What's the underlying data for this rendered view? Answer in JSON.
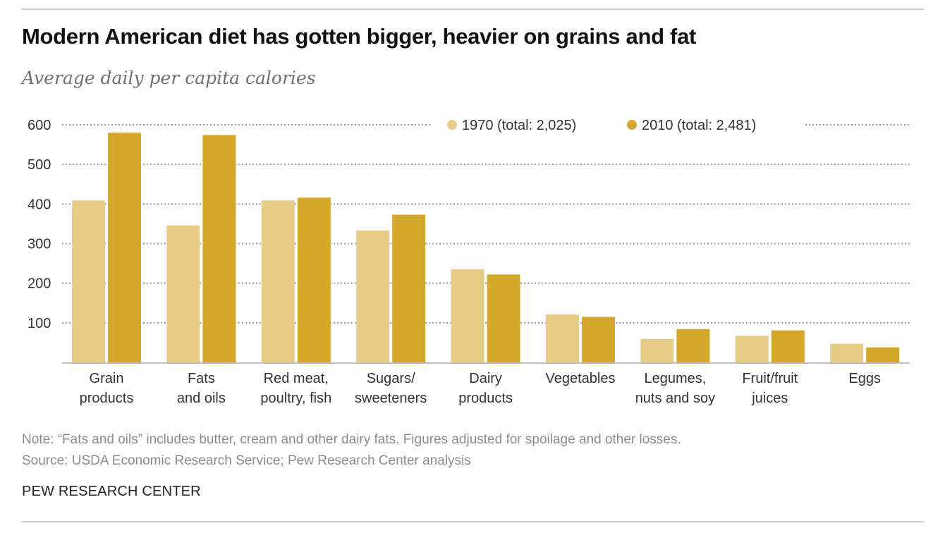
{
  "header": {
    "title": "Modern American diet has gotten bigger, heavier on grains and fat",
    "subtitle": "Average daily per capita calories"
  },
  "footer": {
    "note": "Note: “Fats and oils” includes butter, cream and other dairy fats. Figures adjusted for spoilage and other losses.",
    "source": "Source: USDA Economic Research Service; Pew Research Center analysis",
    "brand": "PEW RESEARCH CENTER"
  },
  "colors": {
    "series_1970": "#e6cc86",
    "series_2010": "#d4a82d",
    "grid": "#9a9a9a",
    "axis": "#bdbdbd",
    "text": "#333333"
  },
  "chart_data": {
    "type": "bar",
    "categories": [
      [
        "Grain",
        "products"
      ],
      [
        "Fats",
        "and oils"
      ],
      [
        "Red meat,",
        "poultry, fish"
      ],
      [
        "Sugars/",
        "sweeteners"
      ],
      [
        "Dairy",
        "products"
      ],
      [
        "Vegetables"
      ],
      [
        "Legumes,",
        "nuts and soy"
      ],
      [
        "Fruit/fruit",
        "juices"
      ],
      [
        "Eggs"
      ]
    ],
    "series": [
      {
        "name": "1970 (total: 2,025)",
        "values": [
          409,
          346,
          409,
          333,
          235,
          121,
          59,
          67,
          47
        ]
      },
      {
        "name": "2010 (total: 2,481)",
        "values": [
          580,
          574,
          416,
          373,
          222,
          115,
          84,
          81,
          38
        ]
      }
    ],
    "yticks": [
      100,
      200,
      300,
      400,
      500,
      600
    ],
    "ylim": [
      0,
      600
    ],
    "grid": true,
    "legend_position": "top-right"
  }
}
